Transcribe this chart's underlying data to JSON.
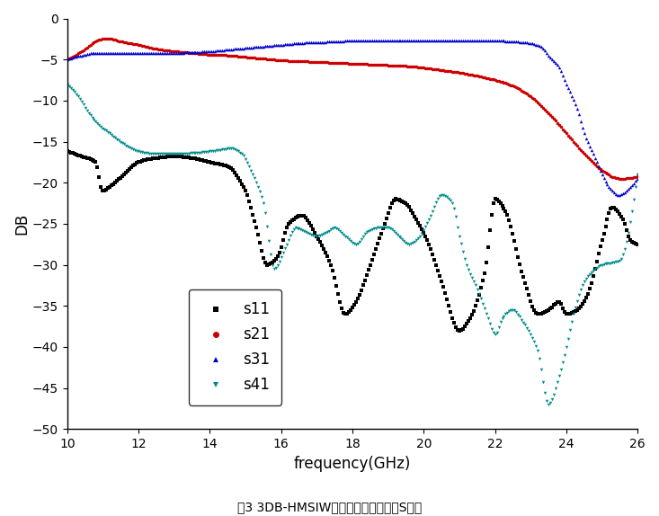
{
  "xlabel": "frequency(GHz)",
  "ylabel": "DB",
  "caption": "图3 3DB-HMSIW定向耦合器的的仿真S参数",
  "xlim": [
    10,
    26
  ],
  "ylim": [
    -50,
    0
  ],
  "yticks": [
    0,
    -5,
    -10,
    -15,
    -20,
    -25,
    -30,
    -35,
    -40,
    -45,
    -50
  ],
  "xticks": [
    10,
    12,
    14,
    16,
    18,
    20,
    22,
    24,
    26
  ],
  "legend_labels": [
    "s11",
    "s21",
    "s31",
    "s41"
  ],
  "colors": {
    "s11": "#000000",
    "s21": "#cc0000",
    "s31": "#0000cc",
    "s41": "#008b8b"
  },
  "markers": {
    "s11": "s",
    "s21": "o",
    "s31": "^",
    "s41": "v"
  },
  "background_color": "#ffffff",
  "marker_size": 2.5,
  "linewidth": 0
}
